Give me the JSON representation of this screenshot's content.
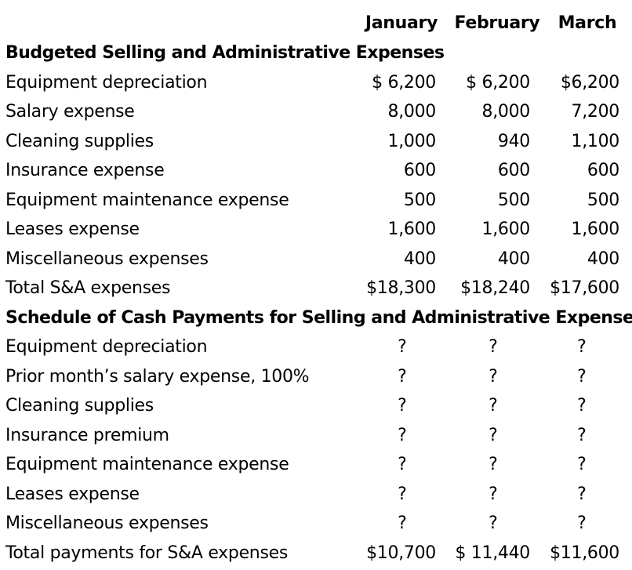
{
  "header": {
    "columns": [
      "January",
      "February",
      "March"
    ]
  },
  "budget": {
    "title": "Budgeted Selling and Administrative Expenses",
    "rows": [
      {
        "label": "Equipment depreciation",
        "values": [
          "$ 6,200",
          "$ 6,200",
          "$6,200"
        ]
      },
      {
        "label": "Salary expense",
        "values": [
          "8,000",
          "8,000",
          "7,200"
        ]
      },
      {
        "label": "Cleaning supplies",
        "values": [
          "1,000",
          "940",
          "1,100"
        ]
      },
      {
        "label": "Insurance expense",
        "values": [
          "600",
          "600",
          "600"
        ]
      },
      {
        "label": "Equipment maintenance expense",
        "values": [
          "500",
          "500",
          "500"
        ]
      },
      {
        "label": "Leases expense",
        "values": [
          "1,600",
          "1,600",
          "1,600"
        ]
      },
      {
        "label": "Miscellaneous expenses",
        "values": [
          "400",
          "400",
          "400"
        ]
      },
      {
        "label": "Total S&A expenses",
        "values": [
          "$18,300",
          "$18,240",
          "$17,600"
        ]
      }
    ]
  },
  "schedule": {
    "title": "Schedule of Cash Payments for Selling and Administrative Expenses",
    "rows": [
      {
        "label": "Equipment depreciation",
        "values": [
          "?",
          "?",
          "?"
        ]
      },
      {
        "label": "Prior month’s salary expense, 100%",
        "values": [
          "?",
          "?",
          "?"
        ]
      },
      {
        "label": "Cleaning supplies",
        "values": [
          "?",
          "?",
          "?"
        ]
      },
      {
        "label": "Insurance premium",
        "values": [
          "?",
          "?",
          "?"
        ]
      },
      {
        "label": "Equipment maintenance expense",
        "values": [
          "?",
          "?",
          "?"
        ]
      },
      {
        "label": "Leases expense",
        "values": [
          "?",
          "?",
          "?"
        ]
      },
      {
        "label": "Miscellaneous expenses",
        "values": [
          "?",
          "?",
          "?"
        ]
      },
      {
        "label": "Total payments for S&A expenses",
        "values": [
          "$10,700",
          "$ 11,440",
          "$11,600"
        ]
      }
    ]
  }
}
